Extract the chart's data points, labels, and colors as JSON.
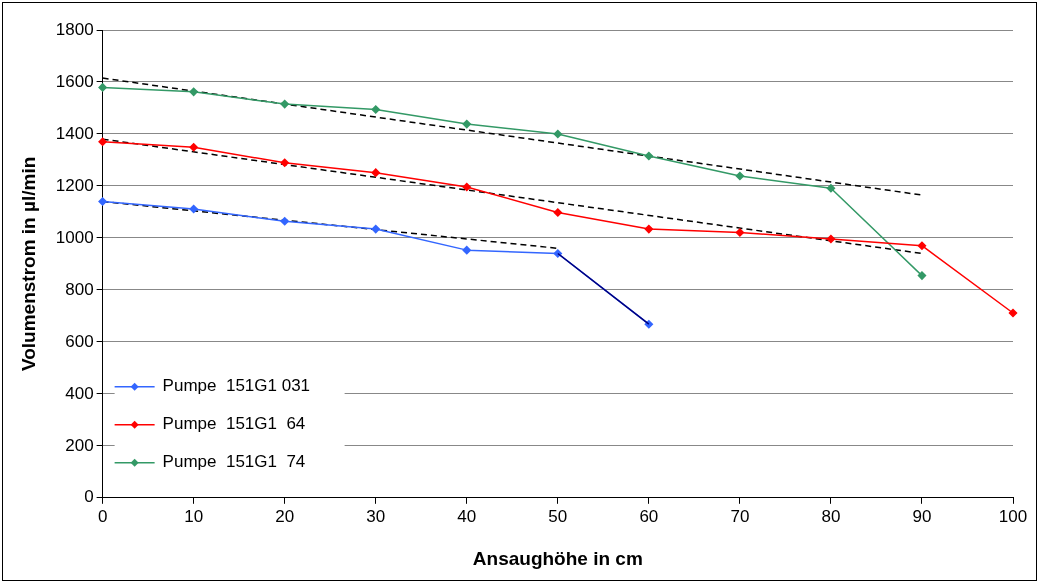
{
  "chart_data": {
    "type": "line",
    "xlabel": "Ansaughöhe in cm",
    "ylabel": "Volumenstrom in µl/min",
    "x": [
      0,
      10,
      20,
      30,
      40,
      50,
      60,
      70,
      80,
      90,
      100
    ],
    "xlim": [
      0,
      100
    ],
    "xticks": [
      0,
      10,
      20,
      30,
      40,
      50,
      60,
      70,
      80,
      90,
      100
    ],
    "ylim": [
      0,
      1800
    ],
    "yticks": [
      0,
      200,
      400,
      600,
      800,
      1000,
      1200,
      1400,
      1600,
      1800
    ],
    "grid": "y",
    "legend": "bottom left",
    "marker": "diamond",
    "line_style": "solid",
    "series": [
      {
        "name": "Pumpe  151G1 031",
        "color": "#3366ff",
        "x": [
          0,
          10,
          20,
          30,
          40,
          50,
          60
        ],
        "values": [
          1140,
          1111,
          1064,
          1034,
          953,
          940,
          668
        ]
      },
      {
        "name": "Pumpe  151G1  64",
        "color": "#ff0000",
        "values": [
          1370,
          1349,
          1289,
          1251,
          1196,
          1098,
          1034,
          1021,
          996,
          970,
          711
        ]
      },
      {
        "name": "Pumpe  151G1  74",
        "color": "#339966",
        "x": [
          0,
          10,
          20,
          30,
          40,
          50,
          60,
          70,
          80,
          90
        ],
        "values": [
          1579,
          1562,
          1515,
          1494,
          1438,
          1400,
          1315,
          1238,
          1191,
          855
        ]
      },
      {
        "type": "line",
        "color": "#000080",
        "marker": "none",
        "x": [
          50,
          60
        ],
        "values": [
          940,
          668
        ]
      },
      {
        "type": "line",
        "color": "#000000",
        "marker": "none",
        "line_style": "dashed",
        "x": [
          0,
          50
        ],
        "values": [
          1140,
          960
        ]
      },
      {
        "type": "line",
        "color": "#000000",
        "marker": "none",
        "line_style": "dashed",
        "x": [
          0,
          90
        ],
        "values": [
          1380,
          940
        ]
      },
      {
        "type": "line",
        "color": "#000000",
        "marker": "none",
        "line_style": "dashed",
        "x": [
          0,
          90
        ],
        "values": [
          1615,
          1165
        ]
      }
    ]
  }
}
